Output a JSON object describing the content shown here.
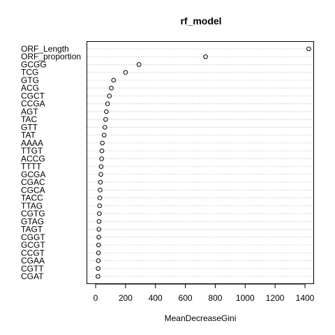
{
  "chart_data": {
    "type": "scatter",
    "title": "rf_model",
    "xlabel": "MeanDecreaseGini",
    "ylabel": "",
    "xlim": [
      -60,
      1480
    ],
    "xticks": [
      0,
      200,
      400,
      600,
      800,
      1000,
      1200,
      1400
    ],
    "grid": "dotted horizontal per variable",
    "variables": [
      "ORF_Length",
      "ORF_proportion",
      "GCGG",
      "TCG",
      "GTG",
      "ACG",
      "CGCT",
      "CCGA",
      "AGT",
      "TAC",
      "GTT",
      "TAT",
      "AAAA",
      "TTGT",
      "ACCG",
      "TTTT",
      "GCGA",
      "CGAC",
      "CGCA",
      "TACC",
      "TTAG",
      "CGTG",
      "GTAG",
      "TAGT",
      "CGGT",
      "GCGT",
      "CCGT",
      "CGAA",
      "CGTT",
      "CGAT"
    ],
    "values": [
      1425,
      735,
      290,
      200,
      120,
      105,
      92,
      80,
      72,
      67,
      62,
      57,
      45,
      42,
      40,
      37,
      35,
      32,
      30,
      28,
      27,
      25,
      23,
      22,
      21,
      20,
      19,
      18,
      17,
      16
    ]
  }
}
